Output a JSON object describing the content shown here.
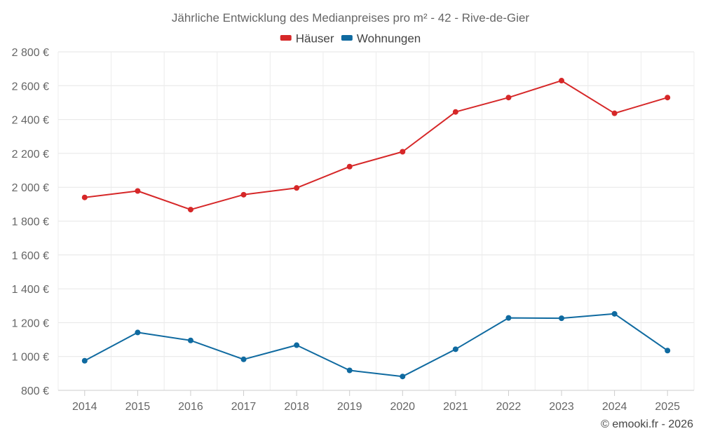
{
  "chart_data": {
    "type": "line",
    "title": "Jährliche Entwicklung des Medianpreises pro m² - 42 - Rive-de-Gier",
    "categories": [
      "2014",
      "2015",
      "2016",
      "2017",
      "2018",
      "2019",
      "2020",
      "2021",
      "2022",
      "2023",
      "2024",
      "2025"
    ],
    "series": [
      {
        "name": "Häuser",
        "color": "#d62728",
        "values": [
          1940,
          1978,
          1868,
          1956,
          1996,
          2122,
          2210,
          2445,
          2530,
          2630,
          2437,
          2530
        ]
      },
      {
        "name": "Wohnungen",
        "color": "#0f6aa0",
        "values": [
          975,
          1142,
          1095,
          983,
          1067,
          918,
          882,
          1043,
          1228,
          1226,
          1252,
          1035
        ]
      }
    ],
    "ylim": [
      800,
      2800
    ],
    "yticks": [
      800,
      1000,
      1200,
      1400,
      1600,
      1800,
      2000,
      2200,
      2400,
      2600,
      2800
    ],
    "ytick_labels": [
      "800 €",
      "1 000 €",
      "1 200 €",
      "1 400 €",
      "1 600 €",
      "1 800 €",
      "2 000 €",
      "2 200 €",
      "2 400 €",
      "2 600 €",
      "2 800 €"
    ],
    "legend": "top-center",
    "grid": true,
    "xlabel": "",
    "ylabel": ""
  },
  "credit": "© emooki.fr - 2026"
}
